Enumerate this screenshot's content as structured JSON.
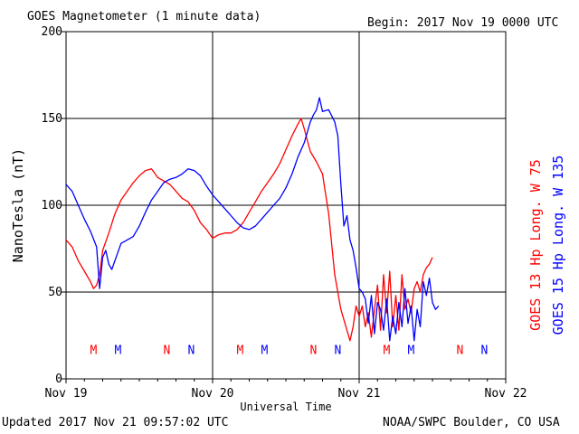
{
  "header": {
    "title": "GOES Magnetometer (1 minute data)",
    "begin": "Begin:  2017 Nov 19 0000 UTC"
  },
  "footer": {
    "updated": "Updated 2017 Nov 21 09:57:02 UTC",
    "credit": "NOAA/SWPC Boulder, CO USA"
  },
  "colors": {
    "goes13": "#ff0000",
    "goes15": "#0000ff",
    "grid": "#000000"
  },
  "chart_data": {
    "type": "line",
    "title": "GOES Magnetometer (1 minute data)",
    "xlabel": "Universal Time",
    "ylabel": "NanoTesla (nT)",
    "xlim": [
      0,
      72
    ],
    "x_unit": "hours since 2017 Nov 19 0000 UTC",
    "ylim": [
      0,
      200
    ],
    "yticks": [
      0,
      50,
      100,
      150,
      200
    ],
    "xticks": [
      {
        "x": 0,
        "label": "Nov 19"
      },
      {
        "x": 24,
        "label": "Nov 20"
      },
      {
        "x": 48,
        "label": "Nov 21"
      },
      {
        "x": 72,
        "label": "Nov 22"
      }
    ],
    "grid": true,
    "series": [
      {
        "name": "GOES 13 Hp  Long. W 75",
        "color": "#ff0000",
        "x": [
          0,
          1,
          2,
          3,
          4,
          4.5,
          5,
          5.5,
          6,
          7,
          8,
          9,
          10,
          11,
          12,
          13,
          14,
          15,
          16,
          17,
          18,
          19,
          20,
          21,
          22,
          23,
          24,
          25,
          26,
          27,
          28,
          29,
          30,
          31,
          32,
          33,
          34,
          35,
          36,
          37,
          38,
          38.5,
          39,
          40,
          41,
          42,
          43,
          44,
          45,
          46,
          46.5,
          47,
          47.5,
          48,
          48.5,
          49,
          49.5,
          50,
          50.5,
          51,
          51.5,
          52,
          52.5,
          53,
          53.5,
          54,
          54.5,
          55,
          55.5,
          56,
          56.5,
          57,
          57.5,
          58,
          58.5,
          59,
          59.5,
          60
        ],
        "values": [
          80,
          76,
          68,
          62,
          56,
          52,
          54,
          60,
          74,
          84,
          95,
          103,
          108,
          113,
          117,
          120,
          121,
          116,
          114,
          112,
          108,
          104,
          102,
          97,
          90,
          86,
          81,
          83,
          84,
          84,
          86,
          90,
          96,
          102,
          108,
          113,
          118,
          124,
          132,
          140,
          147,
          150,
          144,
          131,
          125,
          118,
          95,
          60,
          40,
          28,
          22,
          30,
          42,
          36,
          42,
          30,
          38,
          24,
          40,
          54,
          28,
          60,
          38,
          62,
          30,
          48,
          28,
          60,
          40,
          46,
          38,
          52,
          56,
          50,
          60,
          64,
          66,
          70
        ]
      },
      {
        "name": "GOES 15 Hp  Long. W 135",
        "color": "#0000ff",
        "x": [
          0,
          1,
          2,
          3,
          4,
          5,
          5.5,
          6,
          6.5,
          7,
          7.5,
          8,
          9,
          10,
          11,
          12,
          13,
          14,
          15,
          16,
          17,
          18,
          19,
          20,
          21,
          22,
          23,
          24,
          25,
          26,
          27,
          28,
          29,
          30,
          31,
          32,
          33,
          34,
          35,
          36,
          37,
          38,
          39,
          40,
          40.5,
          41,
          41.5,
          42,
          43,
          44,
          44.5,
          45,
          45.5,
          46,
          46.5,
          47,
          47.5,
          48,
          48.5,
          49,
          49.5,
          50,
          50.5,
          51,
          51.5,
          52,
          52.5,
          53,
          53.5,
          54,
          54.5,
          55,
          55.5,
          56,
          56.5,
          57,
          57.5,
          58,
          58.5,
          59,
          59.5,
          60,
          60.5,
          61
        ],
        "values": [
          112,
          108,
          100,
          92,
          85,
          76,
          52,
          70,
          74,
          66,
          63,
          68,
          78,
          80,
          82,
          88,
          96,
          103,
          108,
          113,
          115,
          116,
          118,
          121,
          120,
          117,
          111,
          106,
          102,
          98,
          94,
          90,
          87,
          86,
          88,
          92,
          96,
          100,
          104,
          110,
          118,
          128,
          136,
          148,
          152,
          155,
          162,
          154,
          155,
          148,
          140,
          112,
          88,
          94,
          80,
          74,
          64,
          52,
          50,
          46,
          32,
          48,
          26,
          44,
          40,
          28,
          46,
          22,
          36,
          26,
          44,
          30,
          52,
          32,
          42,
          22,
          40,
          30,
          56,
          48,
          58,
          44,
          40,
          42
        ]
      }
    ],
    "markers": [
      {
        "x": 4.5,
        "label": "M",
        "color": "#ff0000"
      },
      {
        "x": 8.5,
        "label": "M",
        "color": "#0000ff"
      },
      {
        "x": 16.5,
        "label": "N",
        "color": "#ff0000"
      },
      {
        "x": 20.5,
        "label": "N",
        "color": "#0000ff"
      },
      {
        "x": 28.5,
        "label": "M",
        "color": "#ff0000"
      },
      {
        "x": 32.5,
        "label": "M",
        "color": "#0000ff"
      },
      {
        "x": 40.5,
        "label": "N",
        "color": "#ff0000"
      },
      {
        "x": 44.5,
        "label": "N",
        "color": "#0000ff"
      },
      {
        "x": 52.5,
        "label": "M",
        "color": "#ff0000"
      },
      {
        "x": 56.5,
        "label": "M",
        "color": "#0000ff"
      },
      {
        "x": 64.5,
        "label": "N",
        "color": "#ff0000"
      },
      {
        "x": 68.5,
        "label": "N",
        "color": "#0000ff"
      }
    ],
    "marker_y": 17
  }
}
